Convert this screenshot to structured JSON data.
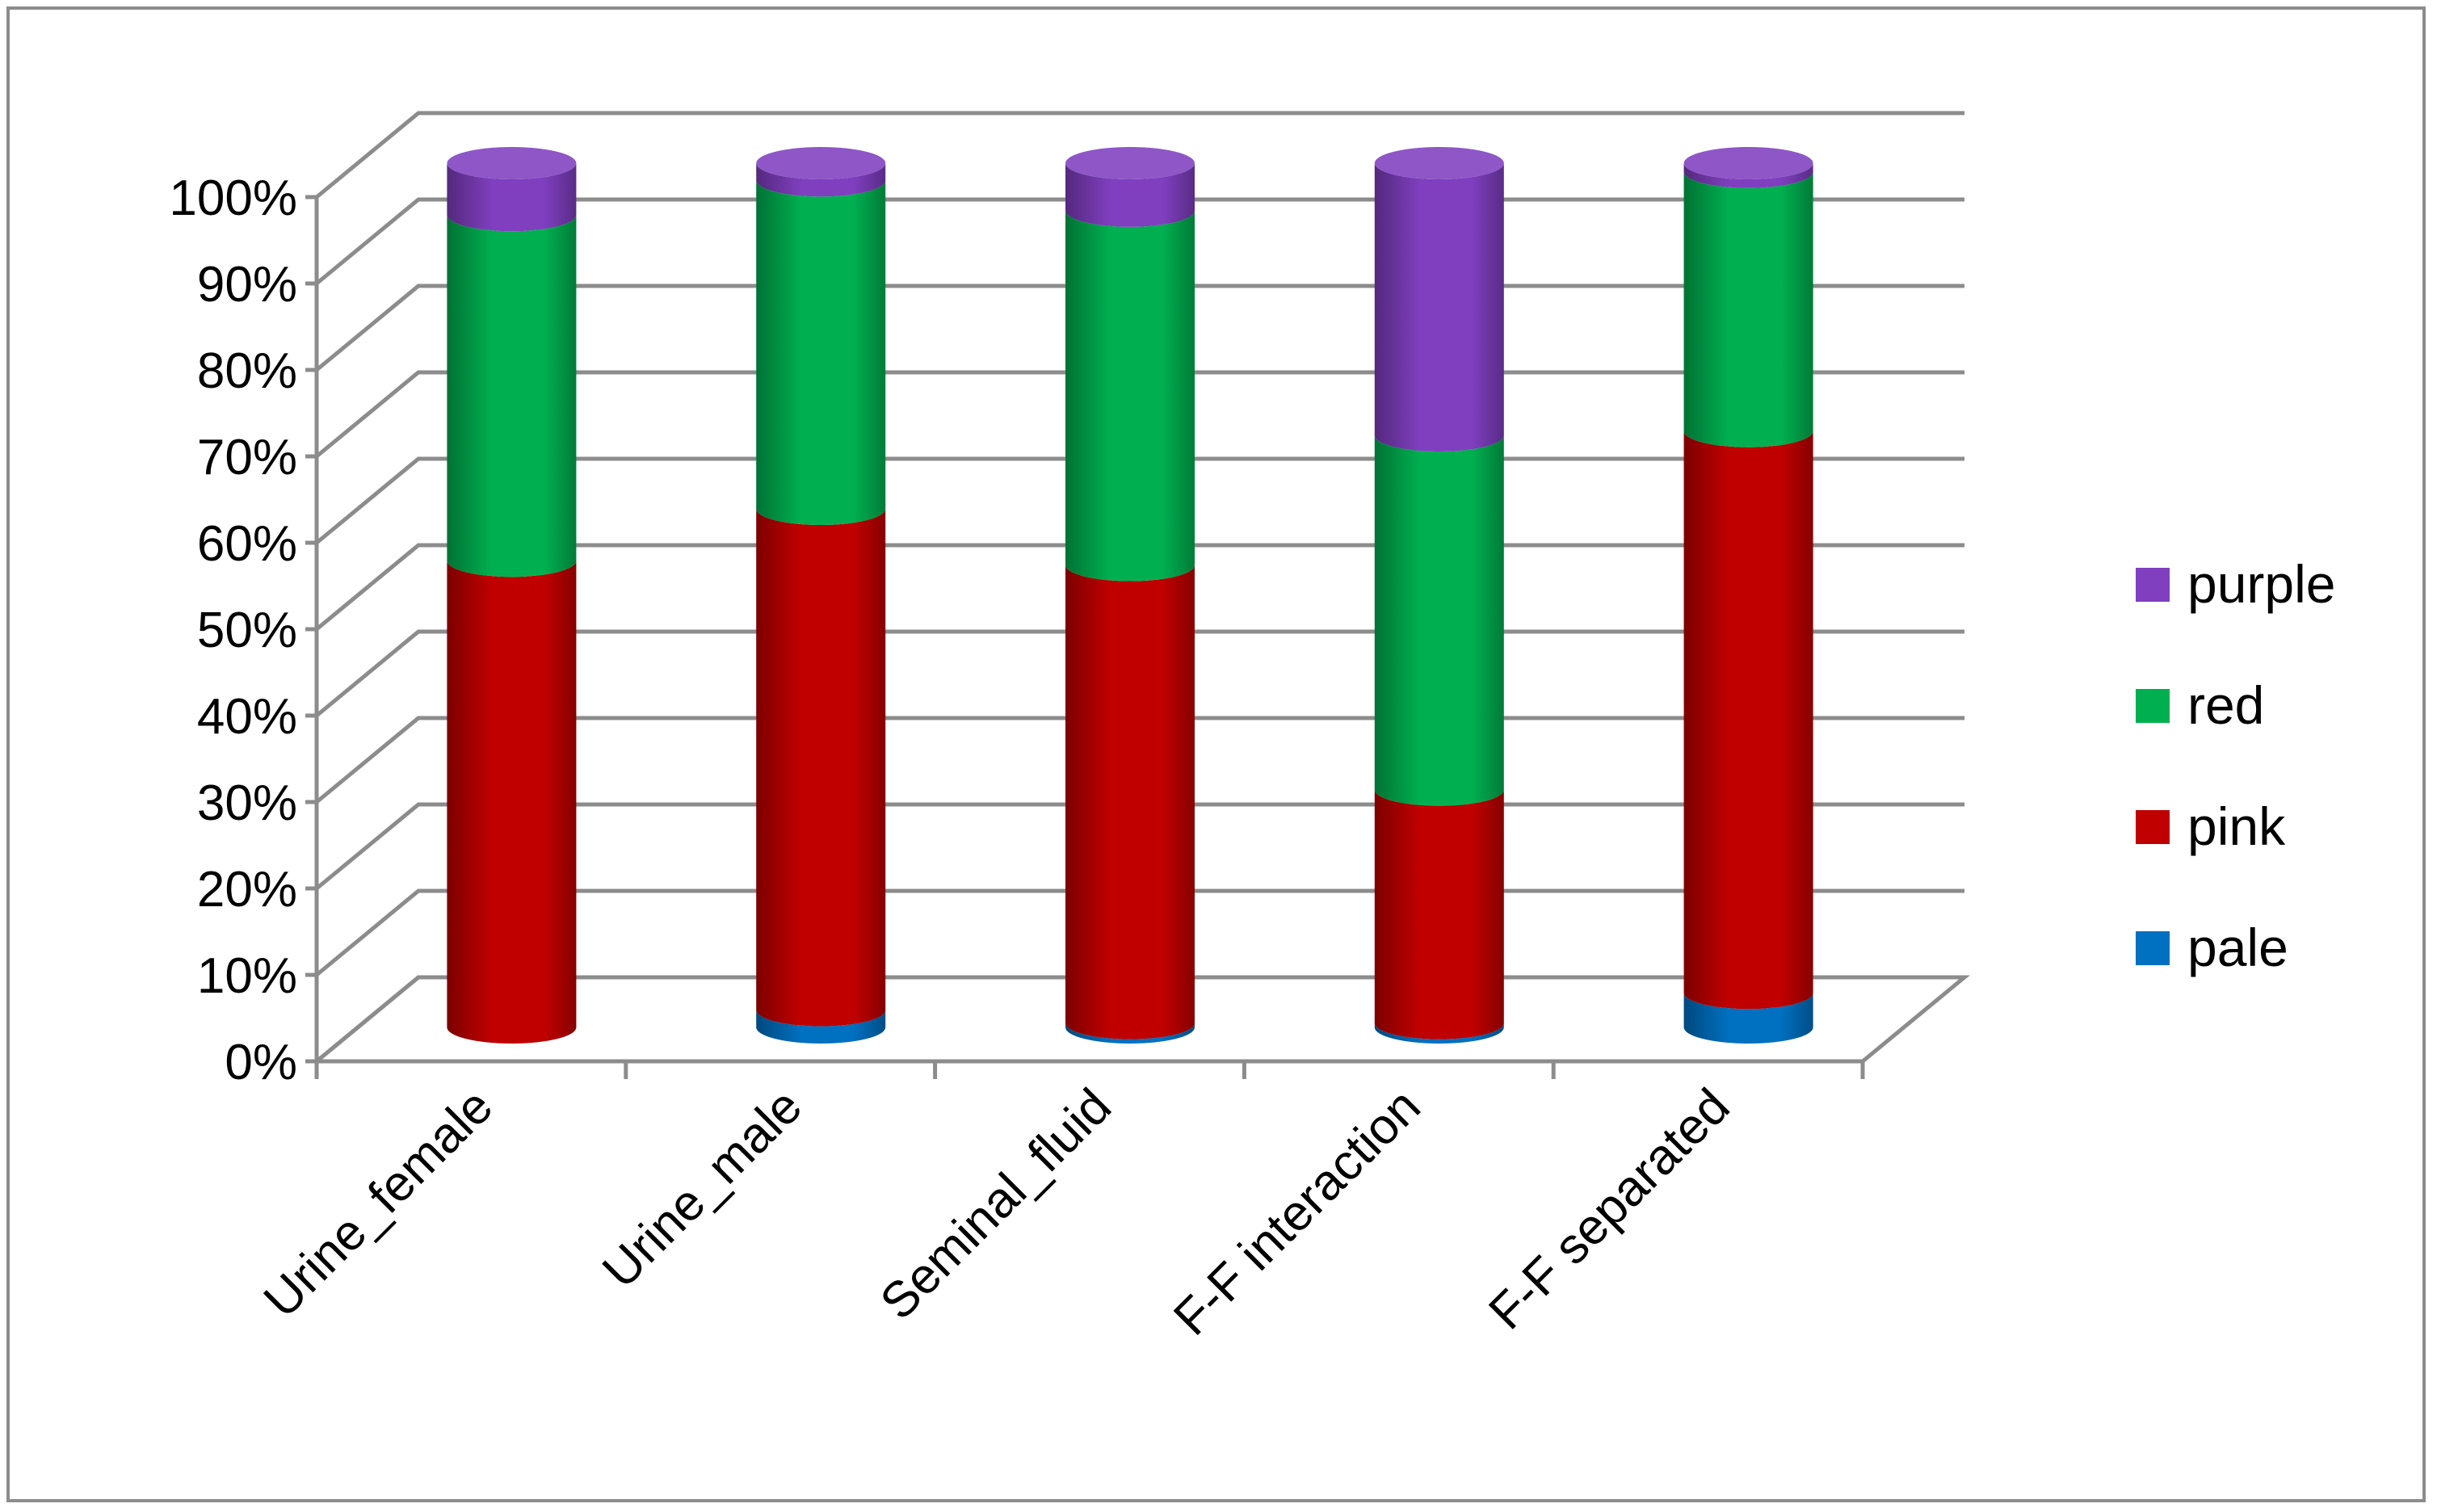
{
  "chart_data": {
    "type": "bar",
    "stacked": true,
    "percent": true,
    "style": "3d-cylinder",
    "categories": [
      "Urine_female",
      "Urine_male",
      "Seminal_fluid",
      "F-F interaction",
      "F-F separated"
    ],
    "series": [
      {
        "name": "pale",
        "color": "#0070c0",
        "values": [
          0,
          2,
          0.5,
          0.5,
          4
        ]
      },
      {
        "name": "pink",
        "color": "#c00000",
        "values": [
          54,
          58,
          53,
          27,
          65
        ]
      },
      {
        "name": "red",
        "color": "#00b050",
        "values": [
          40,
          38,
          41,
          41,
          30
        ]
      },
      {
        "name": "purple",
        "color": "#7f3fbf",
        "values": [
          6,
          2,
          5.5,
          31.5,
          1
        ]
      }
    ],
    "y_ticks": [
      "0%",
      "10%",
      "20%",
      "30%",
      "40%",
      "50%",
      "60%",
      "70%",
      "80%",
      "90%",
      "100%"
    ],
    "ylim": [
      0,
      100
    ],
    "grid": true,
    "legend": {
      "position": "right",
      "order": [
        "purple",
        "red",
        "pink",
        "pale"
      ]
    },
    "title": "",
    "xlabel": "",
    "ylabel": ""
  }
}
